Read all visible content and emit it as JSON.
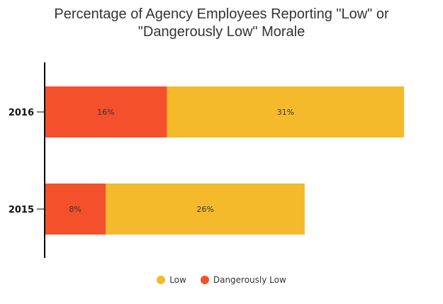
{
  "chart_data": {
    "type": "bar",
    "orientation": "horizontal",
    "stacked": true,
    "title": "Percentage of Agency Employees Reporting \"Low\" or \"Dangerously Low\" Morale",
    "title_lines": [
      "Percentage of Agency Employees Reporting \"Low\" or",
      "\"Dangerously Low\" Morale"
    ],
    "categories": [
      "2016",
      "2015"
    ],
    "series": [
      {
        "name": "Dangerously Low",
        "values": [
          16,
          8
        ],
        "labels": [
          "16%",
          "8%"
        ],
        "color": "#F5502C"
      },
      {
        "name": "Low",
        "values": [
          31,
          26
        ],
        "labels": [
          "31%",
          "26%"
        ],
        "color": "#F5B92C"
      }
    ],
    "legend": [
      {
        "name": "Low",
        "color": "#F5B92C"
      },
      {
        "name": "Dangerously Low",
        "color": "#F5502C"
      }
    ],
    "xlim": [
      0,
      50
    ],
    "xlabel": "",
    "ylabel": "",
    "grid": false,
    "legend_position": "bottom"
  }
}
